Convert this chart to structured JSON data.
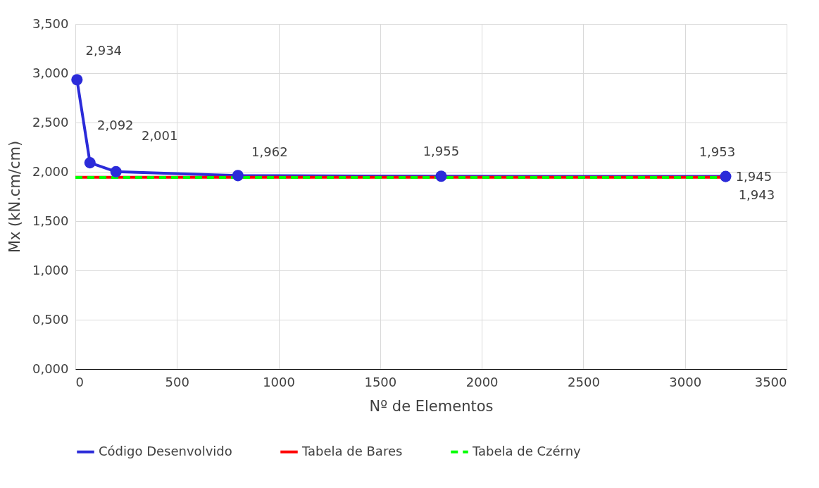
{
  "chart_data": {
    "type": "line",
    "xlabel": "Nº de Elementos",
    "ylabel": "Mx (kN.cm/cm)",
    "xlim": [
      0,
      3500
    ],
    "xticks": [
      0,
      500,
      1000,
      1500,
      2000,
      2500,
      3000,
      3500
    ],
    "ylim": [
      0,
      3.5
    ],
    "yticks": [
      {
        "value": 0,
        "label": "0,000"
      },
      {
        "value": 0.5,
        "label": "0,500"
      },
      {
        "value": 1,
        "label": "1,000"
      },
      {
        "value": 1.5,
        "label": "1,500"
      },
      {
        "value": 2,
        "label": "2,000"
      },
      {
        "value": 2.5,
        "label": "2,500"
      },
      {
        "value": 3,
        "label": "3,000"
      },
      {
        "value": 3.5,
        "label": "3,500"
      }
    ],
    "grid": true,
    "legend": "bottom",
    "series": [
      {
        "name": "Código Desenvolvido",
        "color": "#2b2bd9",
        "marker": "circle",
        "line_style": "solid",
        "x": [
          8,
          72,
          200,
          800,
          1800,
          3200
        ],
        "values": [
          2.934,
          2.092,
          2.001,
          1.962,
          1.955,
          1.953
        ],
        "value_labels": [
          "2,934",
          "2,092",
          "2,001",
          "1,962",
          "1,955",
          "1,953"
        ]
      },
      {
        "name": "Tabela de Bares",
        "color": "#ff0000",
        "marker": "none",
        "line_style": "solid",
        "x": [
          0,
          3200
        ],
        "values": [
          1.945,
          1.945
        ],
        "value_labels": [
          null,
          "1,945"
        ]
      },
      {
        "name": "Tabela de Czérny",
        "color": "#00ff00",
        "marker": "none",
        "line_style": "dashed",
        "x": [
          0,
          3200
        ],
        "values": [
          1.943,
          1.943
        ],
        "value_labels": [
          null,
          "1,943"
        ]
      }
    ]
  }
}
